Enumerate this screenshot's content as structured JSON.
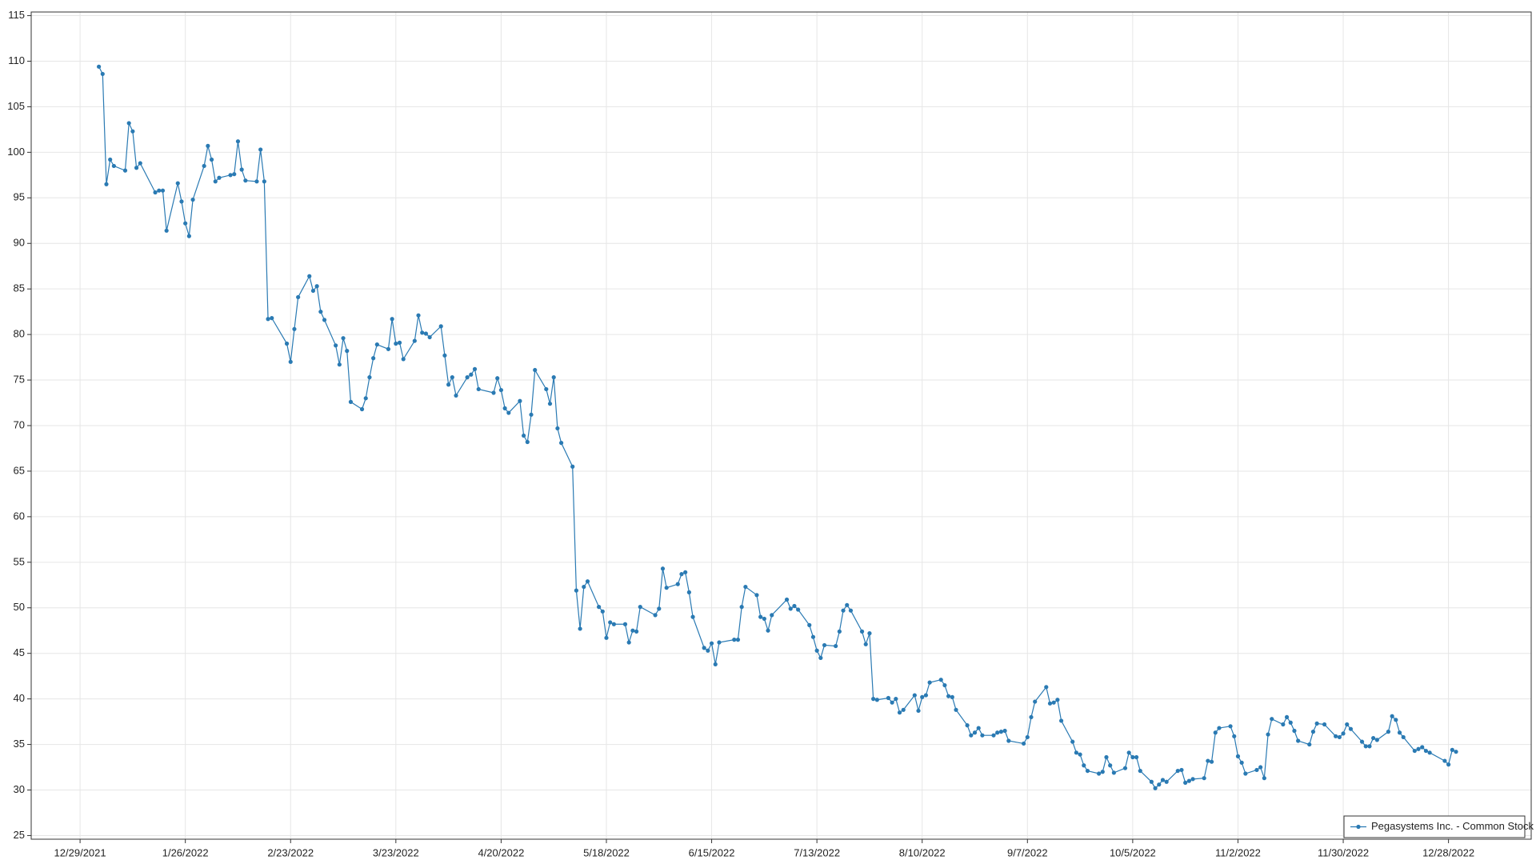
{
  "chart_data": {
    "type": "line",
    "x": [
      "1/3/2022",
      "1/4/2022",
      "1/5/2022",
      "1/6/2022",
      "1/7/2022",
      "1/10/2022",
      "1/11/2022",
      "1/12/2022",
      "1/13/2022",
      "1/14/2022",
      "1/18/2022",
      "1/19/2022",
      "1/20/2022",
      "1/21/2022",
      "1/24/2022",
      "1/25/2022",
      "1/26/2022",
      "1/27/2022",
      "1/28/2022",
      "1/31/2022",
      "2/1/2022",
      "2/2/2022",
      "2/3/2022",
      "2/4/2022",
      "2/7/2022",
      "2/8/2022",
      "2/9/2022",
      "2/10/2022",
      "2/11/2022",
      "2/14/2022",
      "2/15/2022",
      "2/16/2022",
      "2/17/2022",
      "2/18/2022",
      "2/22/2022",
      "2/23/2022",
      "2/24/2022",
      "2/25/2022",
      "2/28/2022",
      "3/1/2022",
      "3/2/2022",
      "3/3/2022",
      "3/4/2022",
      "3/7/2022",
      "3/8/2022",
      "3/9/2022",
      "3/10/2022",
      "3/11/2022",
      "3/14/2022",
      "3/15/2022",
      "3/16/2022",
      "3/17/2022",
      "3/18/2022",
      "3/21/2022",
      "3/22/2022",
      "3/23/2022",
      "3/24/2022",
      "3/25/2022",
      "3/28/2022",
      "3/29/2022",
      "3/30/2022",
      "3/31/2022",
      "4/1/2022",
      "4/4/2022",
      "4/5/2022",
      "4/6/2022",
      "4/7/2022",
      "4/8/2022",
      "4/11/2022",
      "4/12/2022",
      "4/13/2022",
      "4/14/2022",
      "4/18/2022",
      "4/19/2022",
      "4/20/2022",
      "4/21/2022",
      "4/22/2022",
      "4/25/2022",
      "4/26/2022",
      "4/27/2022",
      "4/28/2022",
      "4/29/2022",
      "5/2/2022",
      "5/3/2022",
      "5/4/2022",
      "5/5/2022",
      "5/6/2022",
      "5/9/2022",
      "5/10/2022",
      "5/11/2022",
      "5/12/2022",
      "5/13/2022",
      "5/16/2022",
      "5/17/2022",
      "5/18/2022",
      "5/19/2022",
      "5/20/2022",
      "5/23/2022",
      "5/24/2022",
      "5/25/2022",
      "5/26/2022",
      "5/27/2022",
      "5/31/2022",
      "6/1/2022",
      "6/2/2022",
      "6/3/2022",
      "6/6/2022",
      "6/7/2022",
      "6/8/2022",
      "6/9/2022",
      "6/10/2022",
      "6/13/2022",
      "6/14/2022",
      "6/15/2022",
      "6/16/2022",
      "6/17/2022",
      "6/21/2022",
      "6/22/2022",
      "6/23/2022",
      "6/24/2022",
      "6/27/2022",
      "6/28/2022",
      "6/29/2022",
      "6/30/2022",
      "7/1/2022",
      "7/5/2022",
      "7/6/2022",
      "7/7/2022",
      "7/8/2022",
      "7/11/2022",
      "7/12/2022",
      "7/13/2022",
      "7/14/2022",
      "7/15/2022",
      "7/18/2022",
      "7/19/2022",
      "7/20/2022",
      "7/21/2022",
      "7/22/2022",
      "7/25/2022",
      "7/26/2022",
      "7/27/2022",
      "7/28/2022",
      "7/29/2022",
      "8/1/2022",
      "8/2/2022",
      "8/3/2022",
      "8/4/2022",
      "8/5/2022",
      "8/8/2022",
      "8/9/2022",
      "8/10/2022",
      "8/11/2022",
      "8/12/2022",
      "8/15/2022",
      "8/16/2022",
      "8/17/2022",
      "8/18/2022",
      "8/19/2022",
      "8/22/2022",
      "8/23/2022",
      "8/24/2022",
      "8/25/2022",
      "8/26/2022",
      "8/29/2022",
      "8/30/2022",
      "8/31/2022",
      "9/1/2022",
      "9/2/2022",
      "9/6/2022",
      "9/7/2022",
      "9/8/2022",
      "9/9/2022",
      "9/12/2022",
      "9/13/2022",
      "9/14/2022",
      "9/15/2022",
      "9/16/2022",
      "9/19/2022",
      "9/20/2022",
      "9/21/2022",
      "9/22/2022",
      "9/23/2022",
      "9/26/2022",
      "9/27/2022",
      "9/28/2022",
      "9/29/2022",
      "9/30/2022",
      "10/3/2022",
      "10/4/2022",
      "10/5/2022",
      "10/6/2022",
      "10/7/2022",
      "10/10/2022",
      "10/11/2022",
      "10/12/2022",
      "10/13/2022",
      "10/14/2022",
      "10/17/2022",
      "10/18/2022",
      "10/19/2022",
      "10/20/2022",
      "10/21/2022",
      "10/24/2022",
      "10/25/2022",
      "10/26/2022",
      "10/27/2022",
      "10/28/2022",
      "10/31/2022",
      "11/1/2022",
      "11/2/2022",
      "11/3/2022",
      "11/4/2022",
      "11/7/2022",
      "11/8/2022",
      "11/9/2022",
      "11/10/2022",
      "11/11/2022",
      "11/14/2022",
      "11/15/2022",
      "11/16/2022",
      "11/17/2022",
      "11/18/2022",
      "11/21/2022",
      "11/22/2022",
      "11/23/2022",
      "11/25/2022",
      "11/28/2022",
      "11/29/2022",
      "11/30/2022",
      "12/1/2022",
      "12/2/2022",
      "12/5/2022",
      "12/6/2022",
      "12/7/2022",
      "12/8/2022",
      "12/9/2022",
      "12/12/2022",
      "12/13/2022",
      "12/14/2022",
      "12/15/2022",
      "12/16/2022",
      "12/19/2022",
      "12/20/2022",
      "12/21/2022",
      "12/22/2022",
      "12/23/2022",
      "12/27/2022",
      "12/28/2022",
      "12/29/2022",
      "12/30/2022"
    ],
    "series": [
      {
        "name": "Pegasystems Inc. - Common Stock",
        "color": "#2a7ab3",
        "values": [
          109.4,
          108.6,
          96.5,
          99.2,
          98.5,
          98.0,
          103.2,
          102.3,
          98.3,
          98.8,
          95.6,
          95.8,
          95.8,
          91.4,
          96.6,
          94.6,
          92.2,
          90.8,
          94.8,
          98.5,
          100.7,
          99.2,
          96.8,
          97.2,
          97.5,
          97.6,
          101.2,
          98.1,
          96.9,
          96.8,
          100.3,
          96.8,
          81.7,
          81.8,
          79.0,
          77.0,
          80.6,
          84.1,
          86.4,
          84.8,
          85.3,
          82.5,
          81.6,
          78.8,
          76.7,
          79.6,
          78.2,
          72.6,
          71.8,
          73.0,
          75.3,
          77.4,
          78.9,
          78.4,
          81.7,
          79.0,
          79.1,
          77.3,
          79.3,
          82.1,
          80.2,
          80.1,
          79.7,
          80.9,
          77.7,
          74.5,
          75.3,
          73.3,
          75.3,
          75.6,
          76.2,
          74.0,
          73.6,
          75.2,
          73.9,
          71.9,
          71.4,
          72.7,
          68.9,
          68.2,
          71.2,
          76.1,
          74.0,
          72.4,
          75.3,
          69.7,
          68.1,
          65.5,
          51.9,
          47.7,
          52.3,
          52.9,
          50.1,
          49.6,
          46.7,
          48.4,
          48.2,
          48.2,
          46.2,
          47.5,
          47.4,
          50.1,
          49.2,
          49.9,
          54.3,
          52.2,
          52.6,
          53.7,
          53.9,
          51.7,
          49.0,
          45.6,
          45.3,
          46.1,
          43.8,
          46.2,
          46.5,
          46.5,
          50.1,
          52.3,
          51.4,
          49.0,
          48.8,
          47.5,
          49.2,
          50.9,
          49.9,
          50.2,
          49.8,
          48.1,
          46.8,
          45.3,
          44.5,
          45.9,
          45.8,
          47.4,
          49.7,
          50.3,
          49.7,
          47.4,
          46.0,
          47.2,
          40.0,
          39.9,
          40.1,
          39.6,
          40.0,
          38.5,
          38.8,
          40.4,
          38.7,
          40.2,
          40.4,
          41.8,
          42.1,
          41.5,
          40.3,
          40.2,
          38.8,
          37.1,
          36.0,
          36.3,
          36.8,
          36.0,
          36.0,
          36.3,
          36.4,
          36.5,
          35.4,
          35.1,
          35.8,
          38.0,
          39.7,
          41.3,
          39.5,
          39.6,
          39.9,
          37.6,
          35.3,
          34.1,
          33.9,
          32.7,
          32.1,
          31.8,
          32.0,
          33.6,
          32.7,
          31.9,
          32.4,
          34.1,
          33.6,
          33.6,
          32.1,
          30.9,
          30.2,
          30.6,
          31.1,
          30.9,
          32.1,
          32.2,
          30.8,
          31.0,
          31.2,
          31.3,
          33.2,
          33.1,
          36.3,
          36.8,
          37.0,
          35.9,
          33.7,
          33.0,
          31.8,
          32.2,
          32.5,
          31.3,
          36.1,
          37.8,
          37.2,
          38.0,
          37.4,
          36.5,
          35.4,
          35.0,
          36.4,
          37.3,
          37.2,
          35.9,
          35.8,
          36.2,
          37.2,
          36.7,
          35.3,
          34.8,
          34.8,
          35.7,
          35.5,
          36.4,
          38.1,
          37.7,
          36.3,
          35.8,
          34.3,
          34.5,
          34.7,
          34.3,
          34.1,
          33.2,
          32.8,
          34.4,
          34.2
        ]
      }
    ],
    "xlim": [
      "12/16/2021",
      "1/19/2023"
    ],
    "xticks": [
      "12/29/2021",
      "1/26/2022",
      "2/23/2022",
      "3/23/2022",
      "4/20/2022",
      "5/18/2022",
      "6/15/2022",
      "7/13/2022",
      "8/10/2022",
      "9/7/2022",
      "10/5/2022",
      "11/2/2022",
      "11/30/2022",
      "12/28/2022"
    ],
    "ylim": [
      24.6,
      115.4
    ],
    "yticks": [
      25,
      30,
      35,
      40,
      45,
      50,
      55,
      60,
      65,
      70,
      75,
      80,
      85,
      90,
      95,
      100,
      105,
      110,
      115
    ],
    "grid": true,
    "markers": true,
    "legend": "lower right"
  }
}
